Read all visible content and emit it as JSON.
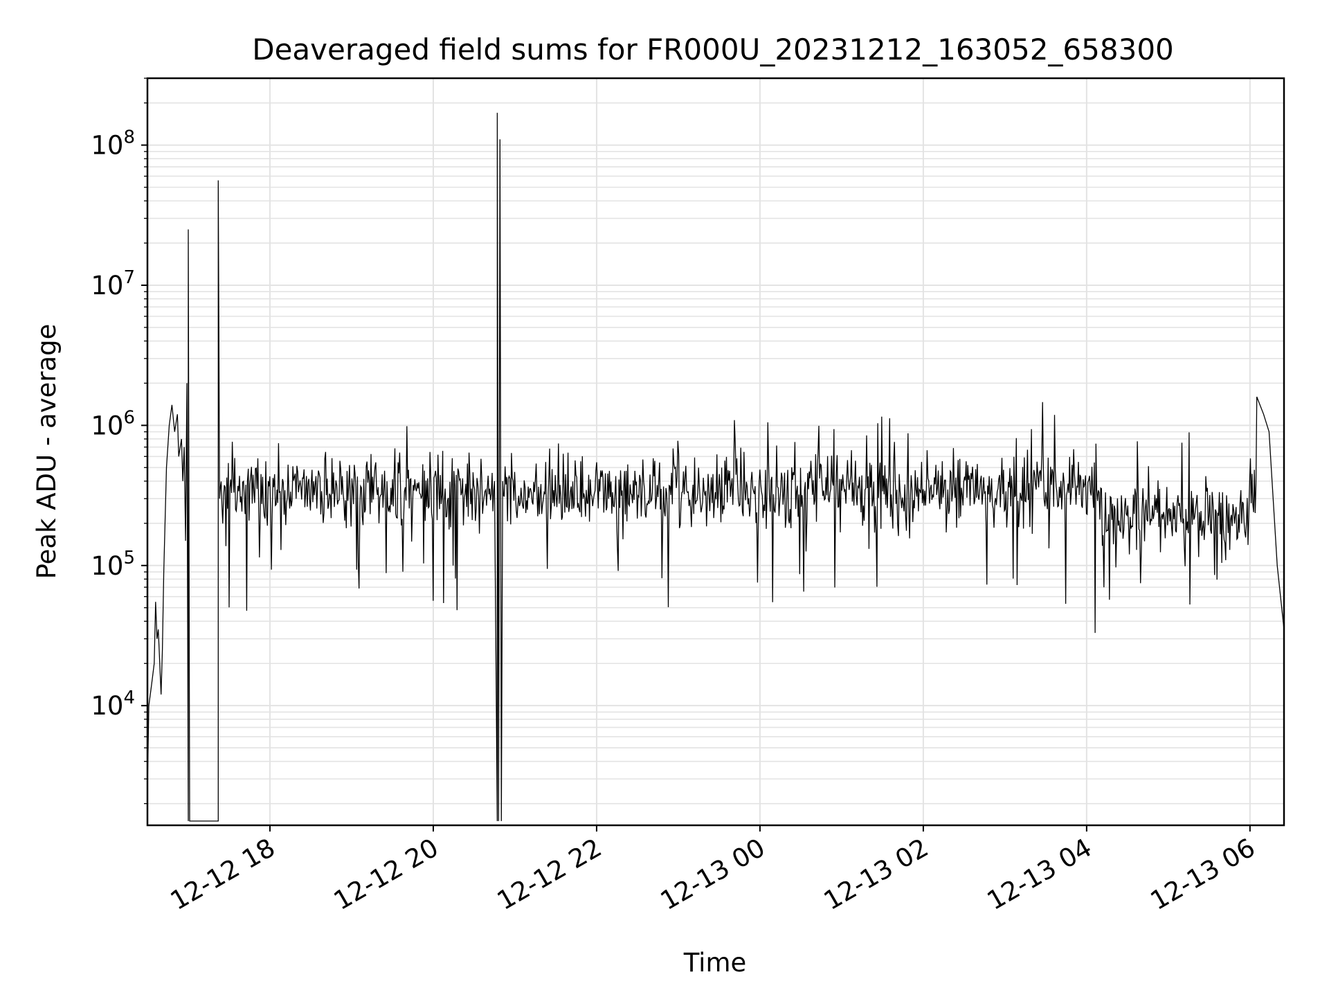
{
  "chart_data": {
    "type": "line",
    "title": "Deaveraged field sums for FR000U_20231212_163052_658300",
    "xlabel": "Time",
    "ylabel": "Peak ADU - average",
    "yscale": "log",
    "ylim": [
      1400,
      300000000
    ],
    "xlim": [
      "2023-12-12 16:30",
      "2023-12-13 06:25"
    ],
    "grid": true,
    "x_ticks": [
      {
        "value": "2023-12-12 18:00",
        "label": "12-12 18"
      },
      {
        "value": "2023-12-12 20:00",
        "label": "12-12 20"
      },
      {
        "value": "2023-12-12 22:00",
        "label": "12-12 22"
      },
      {
        "value": "2023-12-13 00:00",
        "label": "12-13 00"
      },
      {
        "value": "2023-12-13 02:00",
        "label": "12-13 02"
      },
      {
        "value": "2023-12-13 04:00",
        "label": "12-13 04"
      },
      {
        "value": "2023-12-13 06:00",
        "label": "12-13 06"
      }
    ],
    "y_ticks": [
      {
        "value": 10000,
        "base": "10",
        "exp": "4"
      },
      {
        "value": 100000,
        "base": "10",
        "exp": "5"
      },
      {
        "value": 1000000,
        "base": "10",
        "exp": "6"
      },
      {
        "value": 10000000,
        "base": "10",
        "exp": "7"
      },
      {
        "value": 100000000,
        "base": "10",
        "exp": "8"
      }
    ],
    "series": [
      {
        "color": "#000000",
        "points": [
          [
            "2023-12-12 16:30",
            2500
          ],
          [
            "2023-12-12 16:31",
            10000
          ],
          [
            "2023-12-12 16:33",
            14000
          ],
          [
            "2023-12-12 16:35",
            20000
          ],
          [
            "2023-12-12 16:36",
            55000
          ],
          [
            "2023-12-12 16:37",
            30000
          ],
          [
            "2023-12-12 16:38",
            35000
          ],
          [
            "2023-12-12 16:40",
            12000
          ],
          [
            "2023-12-12 16:41",
            25000
          ],
          [
            "2023-12-12 16:42",
            90000
          ],
          [
            "2023-12-12 16:44",
            500000
          ],
          [
            "2023-12-12 16:46",
            1000000
          ],
          [
            "2023-12-12 16:48",
            1400000
          ],
          [
            "2023-12-12 16:50",
            900000
          ],
          [
            "2023-12-12 16:52",
            1200000
          ],
          [
            "2023-12-12 16:53",
            600000
          ],
          [
            "2023-12-12 16:55",
            800000
          ],
          [
            "2023-12-12 16:56",
            400000
          ],
          [
            "2023-12-12 16:57",
            700000
          ],
          [
            "2023-12-12 16:58",
            150000
          ],
          [
            "2023-12-12 16:59",
            2000000
          ],
          [
            "2023-12-12 17:00",
            1500
          ],
          [
            "2023-12-12 17:00",
            25000000
          ],
          [
            "2023-12-12 17:01",
            1500
          ],
          [
            "2023-12-12 17:22",
            1500
          ],
          [
            "2023-12-12 17:22",
            56000000
          ],
          [
            "2023-12-12 17:23",
            300000
          ],
          [
            "2023-12-12 20:45",
            400000
          ],
          [
            "2023-12-12 20:47",
            1500
          ],
          [
            "2023-12-12 20:47",
            170000000
          ],
          [
            "2023-12-12 20:48",
            1500
          ],
          [
            "2023-12-12 20:49",
            110000000
          ],
          [
            "2023-12-12 20:50",
            1500
          ],
          [
            "2023-12-12 20:51",
            400000
          ],
          [
            "2023-12-13 06:05",
            1600000
          ],
          [
            "2023-12-13 06:10",
            1200000
          ],
          [
            "2023-12-13 06:14",
            900000
          ],
          [
            "2023-12-13 06:17",
            300000
          ],
          [
            "2023-12-13 06:20",
            100000
          ],
          [
            "2023-12-13 06:25",
            35000
          ]
        ]
      }
    ]
  }
}
